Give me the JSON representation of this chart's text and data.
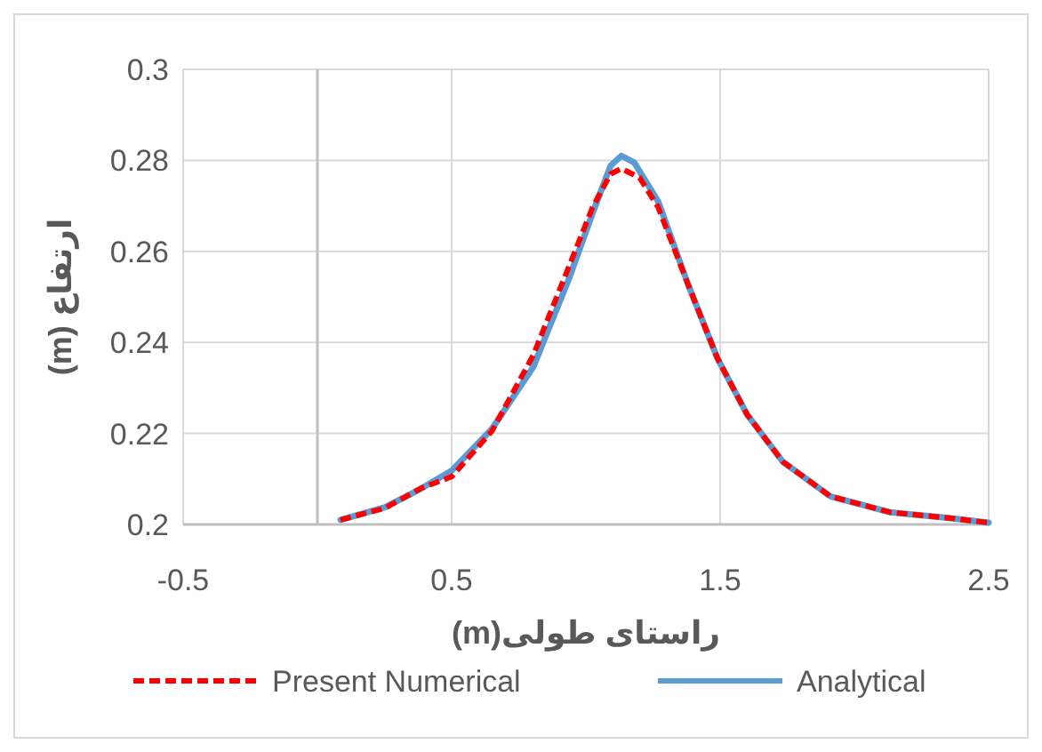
{
  "chart_data": {
    "type": "line",
    "xlabel": "راستای طولی(m)",
    "ylabel": "ارتفاع (m)",
    "xlim": [
      -0.5,
      2.5
    ],
    "xticks": [
      -0.5,
      0.5,
      1.5,
      2.5
    ],
    "ylim": [
      0.2,
      0.3
    ],
    "yticks": [
      0.2,
      0.22,
      0.24,
      0.26,
      0.28,
      0.3
    ],
    "grid": true,
    "legend": "bottom",
    "series": [
      {
        "name": "Present Numerical",
        "color": "#ff0000",
        "line_style": "dashed",
        "x": [
          0.086,
          0.252,
          0.384,
          0.5,
          0.65,
          0.804,
          0.937,
          1.025,
          1.092,
          1.132,
          1.2,
          1.269,
          1.38,
          1.49,
          1.6,
          1.733,
          1.91,
          2.131,
          2.352,
          2.5
        ],
        "values": [
          0.201,
          0.2036,
          0.2079,
          0.2105,
          0.2205,
          0.2372,
          0.2567,
          0.2697,
          0.277,
          0.2782,
          0.2762,
          0.2697,
          0.2528,
          0.2365,
          0.2242,
          0.2138,
          0.2062,
          0.2027,
          0.2014,
          0.2004
        ]
      },
      {
        "name": "Analytical",
        "color": "#5b9bd5",
        "line_style": "solid",
        "x": [
          0.086,
          0.252,
          0.384,
          0.5,
          0.65,
          0.804,
          0.937,
          1.025,
          1.092,
          1.132,
          1.18,
          1.269,
          1.38,
          1.49,
          1.6,
          1.733,
          1.91,
          2.131,
          2.352,
          2.5
        ],
        "values": [
          0.201,
          0.2038,
          0.2078,
          0.2118,
          0.221,
          0.2346,
          0.254,
          0.2684,
          0.2788,
          0.281,
          0.2795,
          0.271,
          0.2528,
          0.2365,
          0.2242,
          0.2138,
          0.2062,
          0.2027,
          0.2014,
          0.2004
        ]
      }
    ]
  }
}
